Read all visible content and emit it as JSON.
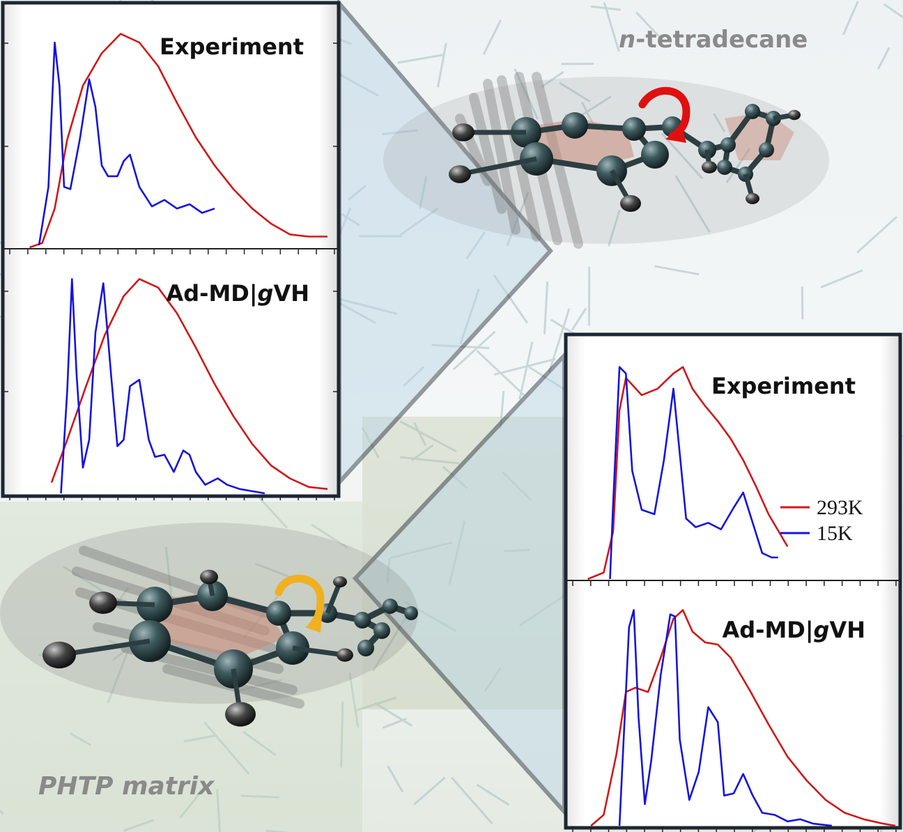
{
  "colors": {
    "red": "#d01818",
    "blue": "#1414e0",
    "frame": "#1c2733",
    "red_arrow": "#e01010",
    "yellow_arrow": "#f0b020",
    "molecule_atom": "#3f5a5e",
    "hydrogen": "#3a3a3a"
  },
  "labels": {
    "top_experiment": "Experiment",
    "top_admd": "Ad-MD|",
    "top_admd_g": "g",
    "top_admd_vh": "VH",
    "bot_experiment": "Experiment",
    "bot_admd": "Ad-MD|",
    "bot_admd_g": "g",
    "bot_admd_vh": "VH",
    "tetradecane_prefix": "n",
    "tetradecane_rest": "-tetradecane",
    "phtp": "PHTP matrix"
  },
  "legend": [
    {
      "name": "293K",
      "color": "#d01818"
    },
    {
      "name": "15K",
      "color": "#1414e0"
    }
  ],
  "chart_data": [
    {
      "type": "line",
      "title": "Experiment",
      "xlabel": "",
      "ylabel": "",
      "xlim": [
        0,
        100
      ],
      "ylim": [
        0,
        1.05
      ],
      "series": [
        {
          "name": "293K",
          "color": "#d01818",
          "x": [
            5,
            9,
            13,
            17,
            22,
            28,
            34,
            40,
            46,
            52,
            58,
            64,
            70,
            76,
            82,
            88,
            94,
            100
          ],
          "y": [
            0.0,
            0.02,
            0.18,
            0.5,
            0.75,
            0.9,
            0.99,
            0.95,
            0.84,
            0.67,
            0.51,
            0.38,
            0.27,
            0.18,
            0.11,
            0.06,
            0.05,
            0.05
          ]
        },
        {
          "name": "15K",
          "color": "#1414e0",
          "x": [
            8,
            11,
            13,
            14.5,
            16,
            18,
            21,
            24,
            26,
            28,
            30,
            33,
            35,
            37,
            40,
            44,
            48,
            52,
            56,
            60,
            64
          ],
          "y": [
            0.01,
            0.28,
            0.95,
            0.75,
            0.28,
            0.27,
            0.5,
            0.78,
            0.65,
            0.38,
            0.33,
            0.33,
            0.4,
            0.43,
            0.28,
            0.19,
            0.22,
            0.18,
            0.2,
            0.16,
            0.18
          ]
        }
      ]
    },
    {
      "type": "line",
      "title": "Ad-MD|gVH",
      "xlabel": "",
      "ylabel": "",
      "xlim": [
        0,
        100
      ],
      "ylim": [
        0,
        1.05
      ],
      "series": [
        {
          "name": "293K",
          "color": "#d01818",
          "x": [
            12,
            17,
            23,
            29,
            35,
            40,
            46,
            52,
            58,
            64,
            70,
            76,
            82,
            88,
            94,
            100
          ],
          "y": [
            0.05,
            0.25,
            0.5,
            0.74,
            0.92,
            1.0,
            0.96,
            0.84,
            0.68,
            0.51,
            0.36,
            0.23,
            0.13,
            0.07,
            0.03,
            0.02
          ]
        },
        {
          "name": "15K",
          "color": "#1414e0",
          "x": [
            15,
            17,
            18.5,
            20,
            22,
            24,
            26,
            28.5,
            31,
            33,
            35,
            37,
            40,
            43,
            45,
            48,
            51,
            54,
            56,
            58,
            61,
            65,
            68,
            72,
            76,
            80
          ],
          "y": [
            0.0,
            0.48,
            1.0,
            0.55,
            0.12,
            0.25,
            0.75,
            0.98,
            0.55,
            0.22,
            0.25,
            0.5,
            0.53,
            0.25,
            0.17,
            0.18,
            0.1,
            0.2,
            0.18,
            0.1,
            0.04,
            0.07,
            0.04,
            0.02,
            0.01,
            0.0
          ]
        }
      ]
    },
    {
      "type": "line",
      "title": "Experiment",
      "xlabel": "",
      "ylabel": "",
      "xlim": [
        0,
        100
      ],
      "ylim": [
        0,
        1.05
      ],
      "series": [
        {
          "name": "293K",
          "color": "#d01818",
          "x": [
            3,
            8,
            11,
            13,
            15,
            20,
            25,
            30,
            33,
            36,
            40,
            44,
            48,
            52,
            56,
            60,
            66
          ],
          "y": [
            0.0,
            0.03,
            0.22,
            0.78,
            0.93,
            0.85,
            0.88,
            0.95,
            0.98,
            0.88,
            0.8,
            0.73,
            0.65,
            0.55,
            0.43,
            0.3,
            0.15
          ]
        },
        {
          "name": "15K",
          "color": "#1414e0",
          "x": [
            10,
            11,
            13,
            15,
            17,
            20,
            24,
            27,
            30,
            32,
            34,
            37,
            41,
            45,
            49,
            52,
            55,
            58,
            61,
            63
          ],
          "y": [
            0.0,
            0.35,
            0.98,
            0.95,
            0.5,
            0.32,
            0.3,
            0.55,
            0.88,
            0.58,
            0.28,
            0.24,
            0.26,
            0.23,
            0.33,
            0.4,
            0.26,
            0.12,
            0.1,
            0.1
          ]
        }
      ]
    },
    {
      "type": "line",
      "title": "Ad-MD|gVH",
      "xlabel": "",
      "ylabel": "",
      "xlim": [
        0,
        100
      ],
      "ylim": [
        0,
        1.05
      ],
      "series": [
        {
          "name": "293K",
          "color": "#d01818",
          "x": [
            4,
            8,
            12,
            15,
            18,
            22,
            26,
            30,
            33,
            36,
            40,
            44,
            48,
            54,
            60,
            66,
            72,
            78,
            84,
            90,
            96,
            100
          ],
          "y": [
            0.0,
            0.05,
            0.33,
            0.62,
            0.64,
            0.62,
            0.78,
            0.96,
            1.0,
            0.9,
            0.85,
            0.84,
            0.78,
            0.63,
            0.47,
            0.32,
            0.21,
            0.12,
            0.06,
            0.03,
            0.01,
            0.0
          ]
        },
        {
          "name": "15K",
          "color": "#1414e0",
          "x": [
            13,
            16,
            17.5,
            19,
            21,
            23,
            26,
            29,
            30.5,
            32,
            35,
            38,
            41,
            44,
            46,
            49,
            52,
            55,
            58,
            62,
            66,
            70,
            74,
            80
          ],
          "y": [
            0.0,
            0.92,
            1.0,
            0.5,
            0.1,
            0.3,
            0.7,
            0.98,
            0.97,
            0.4,
            0.12,
            0.25,
            0.55,
            0.48,
            0.14,
            0.15,
            0.24,
            0.14,
            0.06,
            0.05,
            0.02,
            0.03,
            0.01,
            0.0
          ]
        }
      ]
    }
  ]
}
